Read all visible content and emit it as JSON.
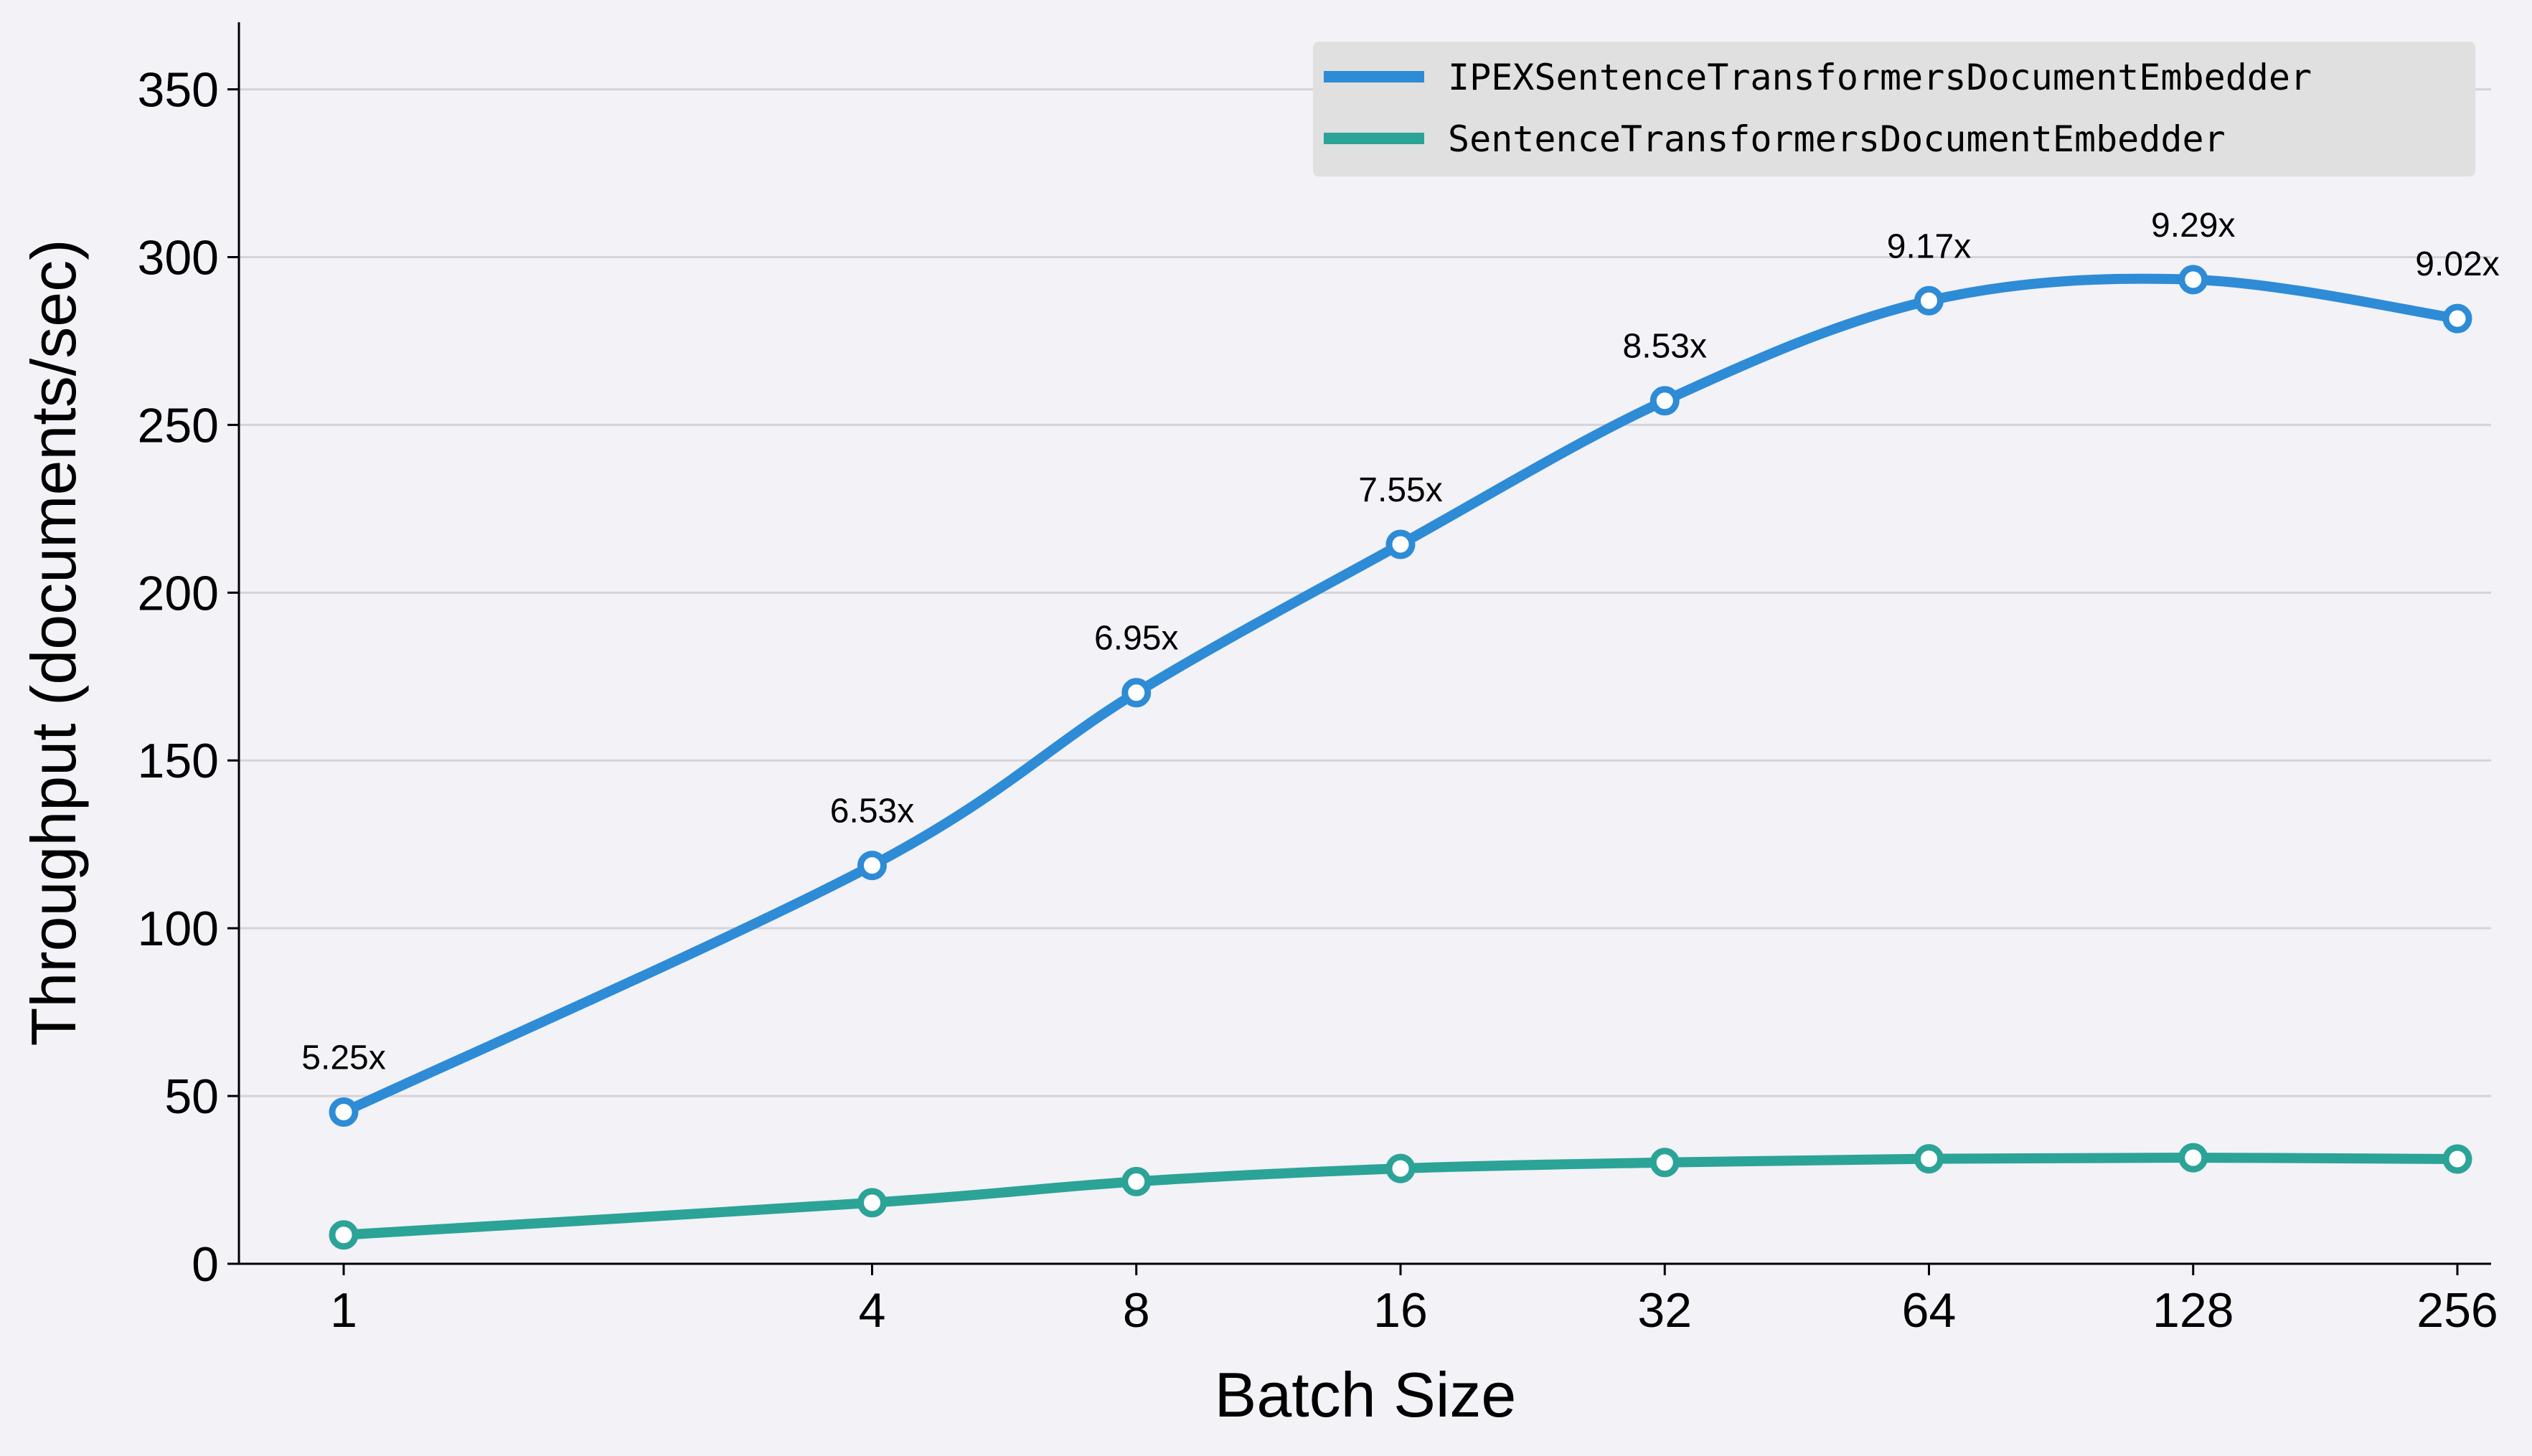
{
  "chart_data": {
    "type": "line",
    "title": "",
    "xlabel": "Batch Size",
    "ylabel": "Throughput (documents/sec)",
    "x_scale": "log2",
    "x": [
      1,
      4,
      8,
      16,
      32,
      64,
      128,
      256
    ],
    "x_tick_labels": [
      "1",
      "4",
      "8",
      "16",
      "32",
      "64",
      "128",
      "256"
    ],
    "y_ticks": [
      0,
      50,
      100,
      150,
      200,
      250,
      300,
      350
    ],
    "ylim": [
      0,
      370
    ],
    "grid": "horizontal",
    "legend_placement": "top-right",
    "series": [
      {
        "name": "IPEXSentenceTransformersDocumentEmbedder",
        "color": "#2e8bd6",
        "values": [
          45.2,
          118.7,
          170.2,
          214.4,
          257.2,
          287.0,
          293.3,
          281.7
        ],
        "labels": [
          "5.25x",
          "6.53x",
          "6.95x",
          "7.55x",
          "8.53x",
          "9.17x",
          "9.29x",
          "9.02x"
        ]
      },
      {
        "name": "SentenceTransformersDocumentEmbedder",
        "color": "#2ca397",
        "values": [
          8.6,
          18.2,
          24.5,
          28.4,
          30.2,
          31.3,
          31.6,
          31.2
        ]
      }
    ]
  }
}
